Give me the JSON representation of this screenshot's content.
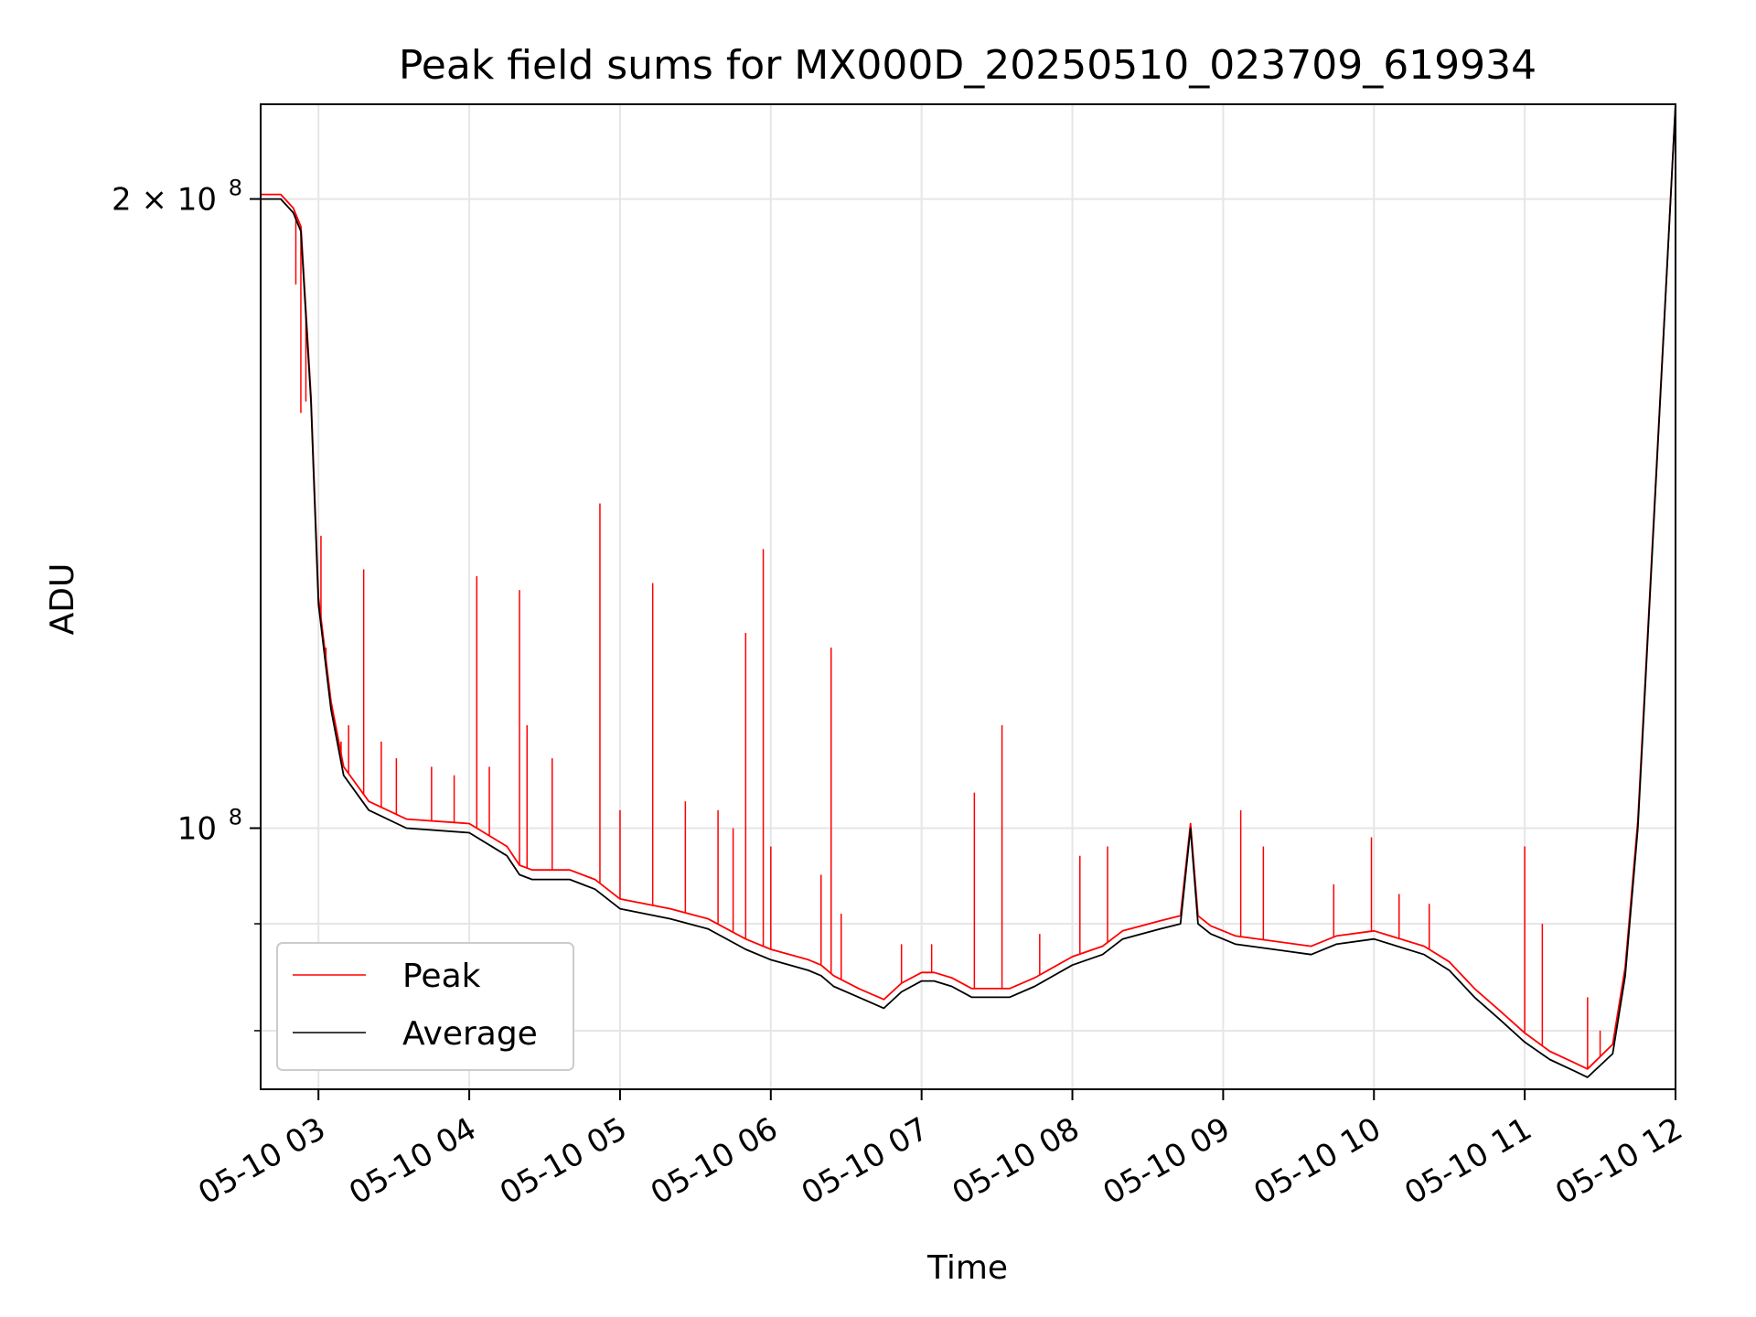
{
  "chart_data": {
    "type": "line",
    "title": "Peak field sums for MX000D_20250510_023709_619934",
    "xlabel": "Time",
    "ylabel": "ADU",
    "yscale": "log",
    "ylim": [
      75000000,
      222000000
    ],
    "xlim": [
      "2025-05-10 02:37",
      "2025-05-10 12:00"
    ],
    "grid": true,
    "legend": "lower-left",
    "x_ticks": [
      "05-10 03",
      "05-10 04",
      "05-10 05",
      "05-10 06",
      "05-10 07",
      "05-10 08",
      "05-10 09",
      "05-10 10",
      "05-10 11",
      "05-10 12"
    ],
    "x_tick_times": [
      "2025-05-10 03:00",
      "2025-05-10 04:00",
      "2025-05-10 05:00",
      "2025-05-10 06:00",
      "2025-05-10 07:00",
      "2025-05-10 08:00",
      "2025-05-10 09:00",
      "2025-05-10 10:00",
      "2025-05-10 11:00",
      "2025-05-10 12:00"
    ],
    "y_ticks": [
      {
        "value": 100000000,
        "label": "10",
        "exp": "8"
      },
      {
        "value": 200000000,
        "label": "2 × 10",
        "exp": "8"
      }
    ],
    "y_minor_ticks": [
      80000000,
      90000000
    ],
    "series": [
      {
        "name": "Average",
        "color": "#000000",
        "x": [
          "2025-05-10 02:37",
          "2025-05-10 02:45",
          "2025-05-10 02:50",
          "2025-05-10 02:53",
          "2025-05-10 02:57",
          "2025-05-10 03:00",
          "2025-05-10 03:05",
          "2025-05-10 03:10",
          "2025-05-10 03:20",
          "2025-05-10 03:35",
          "2025-05-10 04:00",
          "2025-05-10 04:15",
          "2025-05-10 04:20",
          "2025-05-10 04:25",
          "2025-05-10 04:40",
          "2025-05-10 04:50",
          "2025-05-10 05:00",
          "2025-05-10 05:20",
          "2025-05-10 05:35",
          "2025-05-10 05:50",
          "2025-05-10 06:00",
          "2025-05-10 06:15",
          "2025-05-10 06:20",
          "2025-05-10 06:25",
          "2025-05-10 06:35",
          "2025-05-10 06:45",
          "2025-05-10 06:52",
          "2025-05-10 07:00",
          "2025-05-10 07:05",
          "2025-05-10 07:12",
          "2025-05-10 07:20",
          "2025-05-10 07:35",
          "2025-05-10 07:45",
          "2025-05-10 08:00",
          "2025-05-10 08:12",
          "2025-05-10 08:20",
          "2025-05-10 08:35",
          "2025-05-10 08:43",
          "2025-05-10 08:47",
          "2025-05-10 08:50",
          "2025-05-10 08:55",
          "2025-05-10 09:05",
          "2025-05-10 09:20",
          "2025-05-10 09:35",
          "2025-05-10 09:45",
          "2025-05-10 10:00",
          "2025-05-10 10:20",
          "2025-05-10 10:30",
          "2025-05-10 10:40",
          "2025-05-10 10:50",
          "2025-05-10 11:00",
          "2025-05-10 11:10",
          "2025-05-10 11:20",
          "2025-05-10 11:25",
          "2025-05-10 11:35",
          "2025-05-10 11:40",
          "2025-05-10 11:45",
          "2025-05-10 11:55",
          "2025-05-10 12:00"
        ],
        "y": [
          200000000,
          200000000,
          197000000,
          193000000,
          160000000,
          128000000,
          114000000,
          106000000,
          102000000,
          100000000,
          99500000,
          97000000,
          95000000,
          94500000,
          94500000,
          93500000,
          91500000,
          90500000,
          89500000,
          87500000,
          86500000,
          85500000,
          85000000,
          84000000,
          83000000,
          82000000,
          83500000,
          84500000,
          84500000,
          84000000,
          83000000,
          83000000,
          84000000,
          86000000,
          87000000,
          88500000,
          89500000,
          90000000,
          100000000,
          90000000,
          89000000,
          88000000,
          87500000,
          87000000,
          88000000,
          88500000,
          87000000,
          85500000,
          83000000,
          81000000,
          79000000,
          77500000,
          76500000,
          76000000,
          78000000,
          85000000,
          100000000,
          170000000,
          222000000
        ]
      },
      {
        "name": "Peak",
        "color": "#ff0000",
        "x": [
          "2025-05-10 02:37",
          "2025-05-10 02:45",
          "2025-05-10 02:50",
          "2025-05-10 02:53",
          "2025-05-10 02:57",
          "2025-05-10 03:00",
          "2025-05-10 03:05",
          "2025-05-10 03:10",
          "2025-05-10 03:20",
          "2025-05-10 03:35",
          "2025-05-10 04:00",
          "2025-05-10 04:15",
          "2025-05-10 04:20",
          "2025-05-10 04:25",
          "2025-05-10 04:40",
          "2025-05-10 04:50",
          "2025-05-10 05:00",
          "2025-05-10 05:20",
          "2025-05-10 05:35",
          "2025-05-10 05:50",
          "2025-05-10 06:00",
          "2025-05-10 06:15",
          "2025-05-10 06:20",
          "2025-05-10 06:25",
          "2025-05-10 06:35",
          "2025-05-10 06:45",
          "2025-05-10 06:52",
          "2025-05-10 07:00",
          "2025-05-10 07:05",
          "2025-05-10 07:12",
          "2025-05-10 07:20",
          "2025-05-10 07:35",
          "2025-05-10 07:45",
          "2025-05-10 08:00",
          "2025-05-10 08:12",
          "2025-05-10 08:20",
          "2025-05-10 08:35",
          "2025-05-10 08:43",
          "2025-05-10 08:47",
          "2025-05-10 08:50",
          "2025-05-10 08:55",
          "2025-05-10 09:05",
          "2025-05-10 09:20",
          "2025-05-10 09:35",
          "2025-05-10 09:45",
          "2025-05-10 10:00",
          "2025-05-10 10:20",
          "2025-05-10 10:30",
          "2025-05-10 10:40",
          "2025-05-10 10:50",
          "2025-05-10 11:00",
          "2025-05-10 11:10",
          "2025-05-10 11:20",
          "2025-05-10 11:25",
          "2025-05-10 11:35",
          "2025-05-10 11:40",
          "2025-05-10 11:45",
          "2025-05-10 11:55",
          "2025-05-10 12:00"
        ],
        "y": [
          201000000,
          201000000,
          198000000,
          194000000,
          161000000,
          129000000,
          115000000,
          107000000,
          103000000,
          101000000,
          100500000,
          98000000,
          96000000,
          95500000,
          95500000,
          94500000,
          92500000,
          91500000,
          90500000,
          88500000,
          87500000,
          86500000,
          86000000,
          85000000,
          83800000,
          82800000,
          84300000,
          85300000,
          85300000,
          84800000,
          83800000,
          83800000,
          84800000,
          86800000,
          87800000,
          89300000,
          90300000,
          90800000,
          100500000,
          90800000,
          89800000,
          88800000,
          88300000,
          87800000,
          88800000,
          89300000,
          87800000,
          86300000,
          83800000,
          81800000,
          79800000,
          78200000,
          77200000,
          76700000,
          78800000,
          85800000,
          100800000,
          170500000,
          222000000
        ]
      }
    ],
    "peak_spikes": [
      {
        "x": "2025-05-10 02:51",
        "y": 182000000
      },
      {
        "x": "2025-05-10 02:53",
        "y": 158000000
      },
      {
        "x": "2025-05-10 02:55",
        "y": 160000000
      },
      {
        "x": "2025-05-10 02:58",
        "y": 148000000
      },
      {
        "x": "2025-05-10 03:01",
        "y": 138000000
      },
      {
        "x": "2025-05-10 03:03",
        "y": 122000000
      },
      {
        "x": "2025-05-10 03:09",
        "y": 110000000
      },
      {
        "x": "2025-05-10 03:12",
        "y": 112000000
      },
      {
        "x": "2025-05-10 03:18",
        "y": 133000000
      },
      {
        "x": "2025-05-10 03:25",
        "y": 110000000
      },
      {
        "x": "2025-05-10 03:31",
        "y": 108000000
      },
      {
        "x": "2025-05-10 03:45",
        "y": 107000000
      },
      {
        "x": "2025-05-10 03:54",
        "y": 106000000
      },
      {
        "x": "2025-05-10 04:03",
        "y": 132000000
      },
      {
        "x": "2025-05-10 04:08",
        "y": 107000000
      },
      {
        "x": "2025-05-10 04:20",
        "y": 130000000
      },
      {
        "x": "2025-05-10 04:23",
        "y": 112000000
      },
      {
        "x": "2025-05-10 04:33",
        "y": 108000000
      },
      {
        "x": "2025-05-10 04:52",
        "y": 143000000
      },
      {
        "x": "2025-05-10 05:00",
        "y": 102000000
      },
      {
        "x": "2025-05-10 05:13",
        "y": 131000000
      },
      {
        "x": "2025-05-10 05:26",
        "y": 103000000
      },
      {
        "x": "2025-05-10 05:39",
        "y": 102000000
      },
      {
        "x": "2025-05-10 05:45",
        "y": 100000000
      },
      {
        "x": "2025-05-10 05:50",
        "y": 124000000
      },
      {
        "x": "2025-05-10 05:57",
        "y": 136000000
      },
      {
        "x": "2025-05-10 06:00",
        "y": 98000000
      },
      {
        "x": "2025-05-10 06:20",
        "y": 95000000
      },
      {
        "x": "2025-05-10 06:24",
        "y": 122000000
      },
      {
        "x": "2025-05-10 06:28",
        "y": 91000000
      },
      {
        "x": "2025-05-10 06:52",
        "y": 88000000
      },
      {
        "x": "2025-05-10 07:04",
        "y": 88000000
      },
      {
        "x": "2025-05-10 07:21",
        "y": 104000000
      },
      {
        "x": "2025-05-10 07:32",
        "y": 112000000
      },
      {
        "x": "2025-05-10 07:47",
        "y": 89000000
      },
      {
        "x": "2025-05-10 08:03",
        "y": 97000000
      },
      {
        "x": "2025-05-10 08:14",
        "y": 98000000
      },
      {
        "x": "2025-05-10 09:07",
        "y": 102000000
      },
      {
        "x": "2025-05-10 09:16",
        "y": 98000000
      },
      {
        "x": "2025-05-10 09:44",
        "y": 94000000
      },
      {
        "x": "2025-05-10 09:59",
        "y": 99000000
      },
      {
        "x": "2025-05-10 10:10",
        "y": 93000000
      },
      {
        "x": "2025-05-10 10:22",
        "y": 92000000
      },
      {
        "x": "2025-05-10 11:00",
        "y": 98000000
      },
      {
        "x": "2025-05-10 11:07",
        "y": 90000000
      },
      {
        "x": "2025-05-10 11:25",
        "y": 83000000
      },
      {
        "x": "2025-05-10 11:30",
        "y": 80000000
      }
    ]
  }
}
